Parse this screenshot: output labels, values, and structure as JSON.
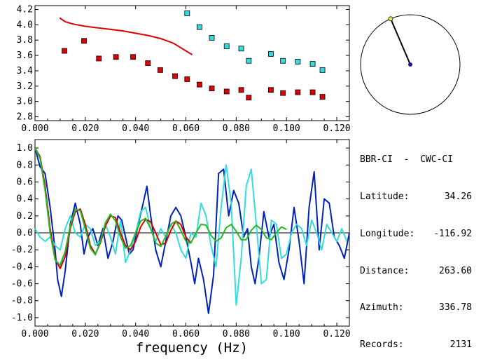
{
  "station_pair": "BBR-CI  -  CWC-CI",
  "info": [
    {
      "label": "Latitude:",
      "value": "34.26"
    },
    {
      "label": "Longitude:",
      "value": "-116.92"
    },
    {
      "label": "Distance:",
      "value": "263.60"
    },
    {
      "label": "Azimuth:",
      "value": "336.78"
    },
    {
      "label": "Records:",
      "value": "2131"
    }
  ],
  "colors": {
    "red": "#dd0000",
    "cyan": "#33dddd",
    "blue": "#0022bb",
    "green": "#22bb22",
    "frame": "#000000",
    "dot_yellow": "#eeee55"
  },
  "chart_data": [
    {
      "type": "scatter",
      "xlim": [
        0.0,
        0.125
      ],
      "ylim": [
        2.75,
        4.25
      ],
      "x_ticks": [
        "0.000",
        "0.020",
        "0.040",
        "0.060",
        "0.080",
        "0.100",
        "0.120"
      ],
      "y_ticks": [
        "2.8",
        "3.0",
        "3.2",
        "3.4",
        "3.6",
        "3.8",
        "4.0",
        "4.2"
      ],
      "grid": false,
      "series": [
        {
          "color": "#dd0000",
          "marker": "square",
          "x": [
            0.0117,
            0.0195,
            0.0254,
            0.0322,
            0.039,
            0.0449,
            0.0498,
            0.0557,
            0.0605,
            0.0654,
            0.0703,
            0.0762,
            0.082,
            0.085,
            0.0938,
            0.0986,
            0.1045,
            0.1104,
            0.1143
          ],
          "y": [
            3.66,
            3.79,
            3.56,
            3.58,
            3.58,
            3.5,
            3.41,
            3.33,
            3.29,
            3.22,
            3.17,
            3.13,
            3.15,
            3.05,
            3.15,
            3.11,
            3.12,
            3.12,
            3.06
          ]
        },
        {
          "color": "#33dddd",
          "marker": "square",
          "x": [
            0.0605,
            0.0654,
            0.0703,
            0.0762,
            0.082,
            0.085,
            0.0938,
            0.0986,
            0.1045,
            0.1104,
            0.1143
          ],
          "y": [
            4.15,
            3.97,
            3.83,
            3.72,
            3.69,
            3.53,
            3.62,
            3.53,
            3.52,
            3.49,
            3.41
          ]
        },
        {
          "color": "#dd0000",
          "marker": "line",
          "x": [
            0.0098,
            0.012,
            0.015,
            0.02,
            0.025,
            0.03,
            0.035,
            0.04,
            0.045,
            0.05,
            0.055,
            0.06,
            0.0625
          ],
          "y": [
            4.09,
            4.04,
            4.01,
            3.98,
            3.96,
            3.94,
            3.92,
            3.89,
            3.86,
            3.82,
            3.76,
            3.66,
            3.61
          ]
        }
      ]
    },
    {
      "type": "line",
      "xlim": [
        0.0,
        0.125
      ],
      "ylim": [
        -1.1,
        1.1
      ],
      "xlabel": "frequency (Hz)",
      "x_ticks": [
        "0.000",
        "0.020",
        "0.040",
        "0.060",
        "0.080",
        "0.100",
        "0.120"
      ],
      "y_ticks": [
        "1.0",
        "0.8",
        "0.6",
        "0.4",
        "0.2",
        "0.0",
        "-0.2",
        "-0.4",
        "-0.6",
        "-0.8",
        "-1.0"
      ],
      "zero_line": true,
      "series": [
        {
          "color": "#0022bb",
          "x": [
            0.0,
            0.002,
            0.004,
            0.006,
            0.008,
            0.009,
            0.0105,
            0.012,
            0.014,
            0.016,
            0.018,
            0.0195,
            0.021,
            0.023,
            0.025,
            0.027,
            0.029,
            0.031,
            0.033,
            0.0345,
            0.036,
            0.0375,
            0.039,
            0.041,
            0.043,
            0.0445,
            0.046,
            0.048,
            0.05,
            0.052,
            0.054,
            0.056,
            0.058,
            0.06,
            0.062,
            0.0635,
            0.065,
            0.067,
            0.069,
            0.071,
            0.073,
            0.075,
            0.077,
            0.079,
            0.081,
            0.083,
            0.0845,
            0.086,
            0.0875,
            0.089,
            0.091,
            0.093,
            0.095,
            0.097,
            0.099,
            0.101,
            0.103,
            0.105,
            0.107,
            0.109,
            0.111,
            0.113,
            0.115,
            0.117,
            0.119,
            0.121,
            0.123,
            0.125
          ],
          "y": [
            1.0,
            0.78,
            0.7,
            0.3,
            -0.2,
            -0.55,
            -0.75,
            -0.45,
            0.1,
            0.35,
            0.1,
            -0.25,
            -0.05,
            0.05,
            -0.15,
            0.05,
            -0.3,
            -0.1,
            0.2,
            0.15,
            -0.05,
            -0.25,
            -0.2,
            0.1,
            0.35,
            0.55,
            0.2,
            -0.2,
            -0.4,
            -0.1,
            0.2,
            0.3,
            0.2,
            -0.05,
            -0.35,
            -0.6,
            -0.3,
            -0.55,
            -0.95,
            -0.5,
            0.7,
            0.75,
            0.2,
            0.5,
            0.35,
            -0.05,
            0.05,
            -0.4,
            -0.6,
            -0.3,
            0.25,
            -0.05,
            0.1,
            -0.35,
            -0.55,
            -0.2,
            0.3,
            -0.1,
            -0.6,
            0.3,
            0.72,
            -0.2,
            0.4,
            0.35,
            -0.05,
            -0.15,
            -0.3,
            0.0
          ]
        },
        {
          "color": "#33dddd",
          "x": [
            0.0,
            0.002,
            0.004,
            0.006,
            0.008,
            0.01,
            0.012,
            0.014,
            0.016,
            0.018,
            0.02,
            0.022,
            0.024,
            0.026,
            0.028,
            0.03,
            0.032,
            0.034,
            0.036,
            0.038,
            0.04,
            0.042,
            0.044,
            0.046,
            0.048,
            0.05,
            0.052,
            0.054,
            0.056,
            0.058,
            0.06,
            0.062,
            0.064,
            0.066,
            0.068,
            0.07,
            0.072,
            0.074,
            0.076,
            0.078,
            0.08,
            0.082,
            0.084,
            0.086,
            0.088,
            0.09,
            0.092,
            0.094,
            0.096,
            0.098,
            0.1,
            0.102,
            0.104,
            0.106,
            0.108,
            0.11,
            0.112,
            0.114,
            0.116,
            0.118,
            0.12,
            0.122,
            0.124
          ],
          "y": [
            0.05,
            -0.05,
            -0.1,
            -0.05,
            -0.15,
            -0.2,
            0.05,
            0.2,
            0.0,
            -0.05,
            0.1,
            0.05,
            -0.15,
            -0.1,
            0.1,
            -0.05,
            -0.25,
            0.15,
            -0.35,
            -0.2,
            0.0,
            0.25,
            0.3,
            0.05,
            -0.1,
            0.05,
            -0.05,
            0.1,
            0.0,
            -0.2,
            -0.3,
            0.0,
            -0.05,
            0.35,
            0.2,
            -0.15,
            -0.4,
            0.3,
            0.8,
            0.35,
            -0.85,
            -0.3,
            0.55,
            0.75,
            0.1,
            -0.6,
            -0.55,
            0.15,
            0.1,
            -0.3,
            -0.25,
            0.0,
            0.1,
            0.05,
            -0.15,
            0.15,
            0.0,
            -0.2,
            0.1,
            0.0,
            -0.1,
            0.05,
            -0.1
          ]
        },
        {
          "color": "#dd0000",
          "x": [
            0.0,
            0.002,
            0.004,
            0.006,
            0.008,
            0.01,
            0.012,
            0.014,
            0.016,
            0.018,
            0.02,
            0.022,
            0.024,
            0.026,
            0.028,
            0.03,
            0.032,
            0.034,
            0.036,
            0.038,
            0.04,
            0.042,
            0.044,
            0.046,
            0.048,
            0.05,
            0.052,
            0.054,
            0.056,
            0.058,
            0.06,
            0.062
          ],
          "y": [
            1.0,
            0.9,
            0.55,
            0.05,
            -0.3,
            -0.42,
            -0.28,
            0.05,
            0.25,
            0.28,
            0.1,
            -0.15,
            -0.25,
            -0.12,
            0.08,
            0.2,
            0.18,
            0.0,
            -0.15,
            -0.2,
            -0.1,
            0.07,
            0.16,
            0.13,
            0.0,
            -0.14,
            -0.12,
            0.03,
            0.14,
            0.1,
            -0.05,
            -0.12
          ]
        },
        {
          "color": "#22bb22",
          "x": [
            0.0,
            0.002,
            0.004,
            0.006,
            0.008,
            0.01,
            0.012,
            0.014,
            0.016,
            0.018,
            0.02,
            0.022,
            0.024,
            0.026,
            0.028,
            0.03,
            0.032,
            0.034,
            0.036,
            0.038,
            0.04,
            0.042,
            0.044,
            0.046,
            0.048,
            0.05,
            0.052,
            0.054,
            0.056,
            0.058,
            0.06,
            0.062,
            0.064,
            0.066,
            0.068,
            0.07,
            0.072,
            0.074,
            0.076,
            0.078,
            0.08,
            0.082,
            0.084,
            0.086,
            0.088,
            0.09,
            0.092,
            0.094,
            0.096,
            0.098,
            0.1
          ],
          "y": [
            1.0,
            0.88,
            0.5,
            0.0,
            -0.32,
            -0.38,
            -0.22,
            0.08,
            0.28,
            0.26,
            0.05,
            -0.18,
            -0.26,
            -0.1,
            0.12,
            0.22,
            0.14,
            -0.05,
            -0.18,
            -0.15,
            0.0,
            0.14,
            0.17,
            0.05,
            -0.12,
            -0.16,
            -0.04,
            0.1,
            0.14,
            0.03,
            -0.1,
            -0.12,
            0.0,
            0.1,
            0.09,
            -0.03,
            -0.1,
            -0.06,
            0.06,
            0.1,
            0.02,
            -0.08,
            -0.08,
            0.03,
            0.09,
            0.04,
            -0.06,
            -0.08,
            0.0,
            0.07,
            0.04
          ]
        }
      ]
    }
  ],
  "azimuth_diagram": {
    "azimuth_deg": 336.78
  }
}
